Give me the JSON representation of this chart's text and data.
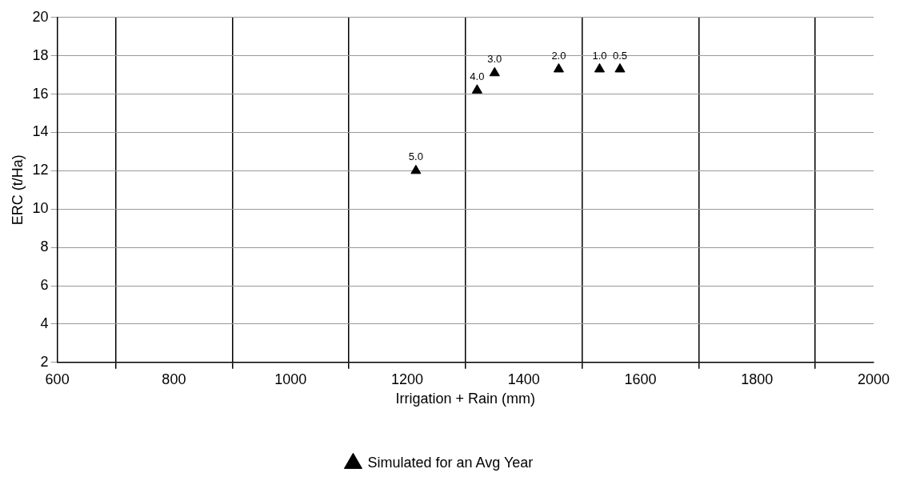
{
  "chart_data": {
    "type": "scatter",
    "xlabel": "Irrigation + Rain (mm)",
    "ylabel": "ERC (t/Ha)",
    "series": [
      {
        "name": "Simulated for an Avg Year",
        "color": "#000000",
        "x": [
          1215,
          1320,
          1350,
          1460,
          1530,
          1565
        ],
        "values": [
          12.0,
          16.2,
          17.1,
          17.3,
          17.3,
          17.3
        ]
      }
    ],
    "annotations": [
      {
        "text": "5.0",
        "x": 1215,
        "y": 12.0
      },
      {
        "text": "4.0",
        "x": 1320,
        "y": 16.2
      },
      {
        "text": "3.0",
        "x": 1350,
        "y": 17.1
      },
      {
        "text": "2.0",
        "x": 1460,
        "y": 17.3
      },
      {
        "text": "1.0",
        "x": 1530,
        "y": 17.3
      },
      {
        "text": "0.5",
        "x": 1565,
        "y": 17.3
      }
    ],
    "xlim": [
      600,
      2000
    ],
    "xticks": [
      600,
      {
        "value": 700,
        "label": null
      },
      800,
      {
        "value": 900,
        "label": null
      },
      1000,
      {
        "value": 1100,
        "label": null
      },
      1200,
      {
        "value": 1300,
        "label": null
      },
      1400,
      {
        "value": 1500,
        "label": null
      },
      1600,
      {
        "value": 1700,
        "label": null
      },
      1800,
      {
        "value": 1900,
        "label": null
      },
      2000
    ],
    "ylim": [
      2,
      20
    ],
    "yticks": [
      2,
      4,
      6,
      8,
      10,
      12,
      14,
      16,
      18,
      20
    ],
    "grid": true,
    "legend": "bottom",
    "marker": "triangle"
  }
}
